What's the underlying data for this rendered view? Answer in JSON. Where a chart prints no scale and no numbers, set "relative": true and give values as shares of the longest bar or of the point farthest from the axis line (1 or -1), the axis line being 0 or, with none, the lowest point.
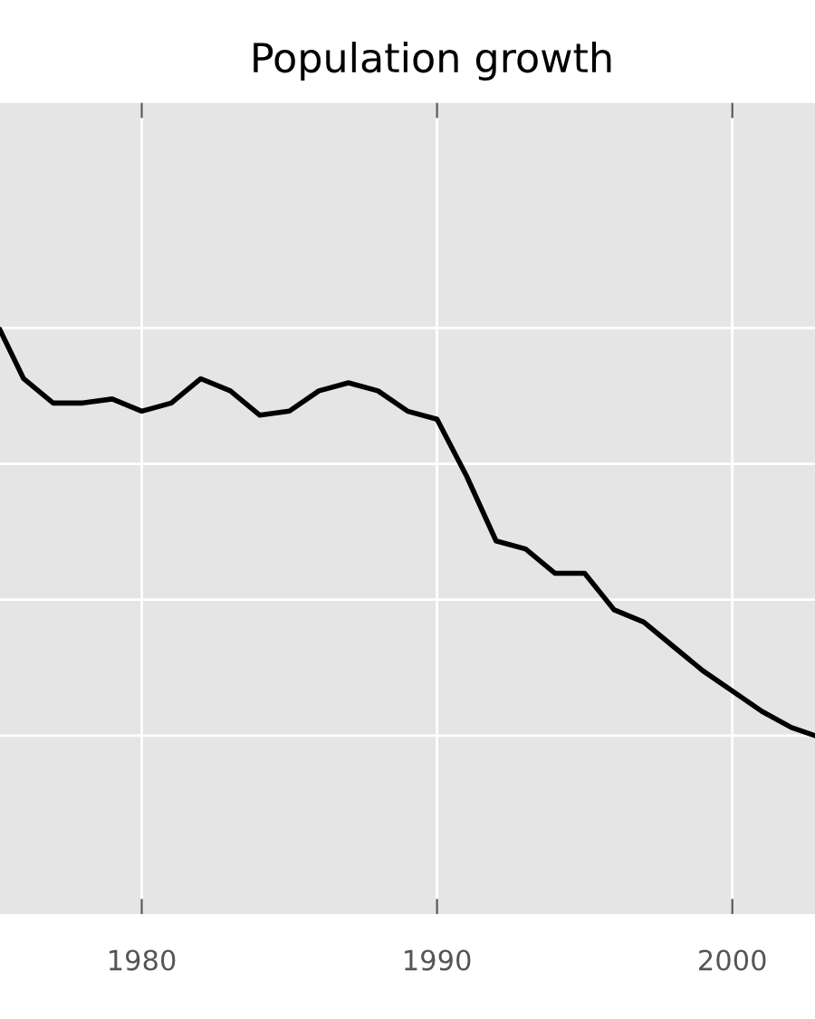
{
  "chart_data": {
    "type": "line",
    "title": "Population growth",
    "relative": true,
    "x": [
      1975.2,
      1976,
      1977,
      1978,
      1979,
      1980,
      1981,
      1982,
      1983,
      1984,
      1985,
      1986,
      1987,
      1988,
      1989,
      1990,
      1991,
      1992,
      1993,
      1994,
      1995,
      1996,
      1997,
      1998,
      1999,
      2000,
      2001,
      2002,
      2002.8
    ],
    "series": [
      {
        "color": "#000000",
        "values": [
          1.0,
          0.88,
          0.82,
          0.82,
          0.83,
          0.8,
          0.82,
          0.88,
          0.85,
          0.79,
          0.8,
          0.85,
          0.87,
          0.85,
          0.8,
          0.78,
          0.64,
          0.48,
          0.46,
          0.4,
          0.4,
          0.31,
          0.28,
          0.22,
          0.16,
          0.11,
          0.06,
          0.02,
          0.0
        ]
      }
    ],
    "xlim": [
      1975.2,
      2002.8
    ],
    "xticks": [
      1980,
      1990,
      2000
    ],
    "grid": true,
    "tick_labels": "x"
  }
}
